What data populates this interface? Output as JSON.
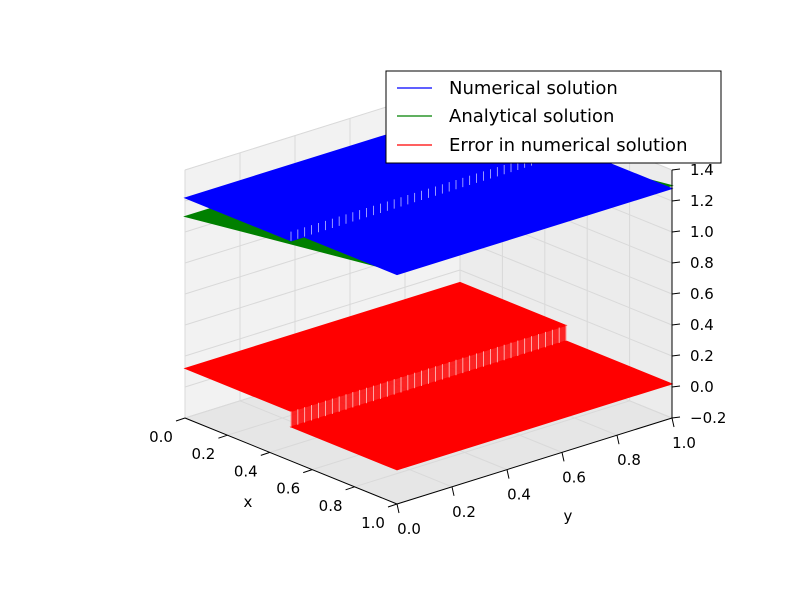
{
  "chart_data": {
    "type": "surface3d",
    "title": "",
    "xlabel": "x",
    "ylabel": "y",
    "zlabel": "",
    "xlim": [
      0.0,
      1.0
    ],
    "ylim": [
      0.0,
      1.0
    ],
    "zlim": [
      -0.2,
      1.4
    ],
    "x_ticks": [
      "0.0",
      "0.2",
      "0.4",
      "0.6",
      "0.8",
      "1.0"
    ],
    "y_ticks": [
      "0.0",
      "0.2",
      "0.4",
      "0.6",
      "0.8",
      "1.0"
    ],
    "z_ticks": [
      "−0.2",
      "0.0",
      "0.2",
      "0.4",
      "0.6",
      "0.8",
      "1.0",
      "1.2",
      "1.4"
    ],
    "legend_position": "top-right",
    "series": [
      {
        "name": "Numerical solution",
        "color": "#0000ff",
        "description": "piecewise-constant in x: 1.22 for x<0.5, 1.28 for x>=0.5, with a step near y=0.5",
        "z_low_x": 1.22,
        "z_high_x": 1.28,
        "step_x": 0.5,
        "step_y": 0.5
      },
      {
        "name": "Analytical solution",
        "color": "#008000",
        "z_at_x0": 1.1,
        "z_at_x1": 1.3
      },
      {
        "name": "Error in numerical solution",
        "color": "#ff0000",
        "z_low_x": 0.12,
        "z_high_x": 0.02,
        "step_x": 0.5,
        "step_y": 0.5
      }
    ]
  }
}
